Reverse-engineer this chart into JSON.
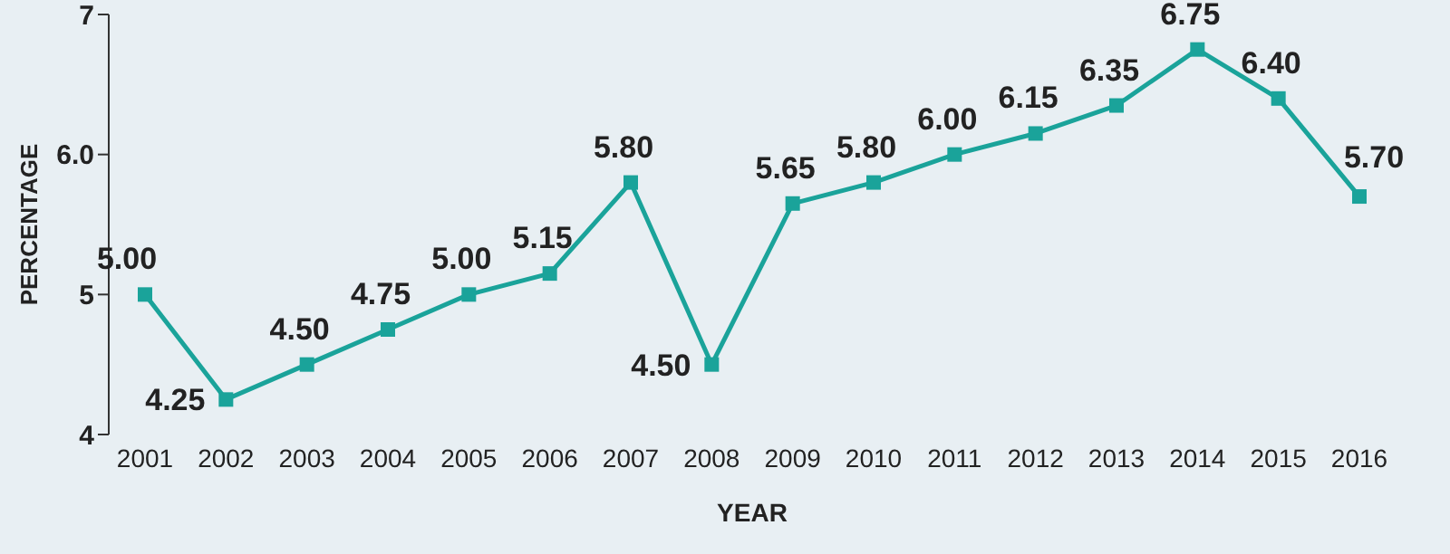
{
  "chart_data": {
    "type": "line",
    "xlabel": "YEAR",
    "ylabel": "PERCENTAGE",
    "categories": [
      "2001",
      "2002",
      "2003",
      "2004",
      "2005",
      "2006",
      "2007",
      "2008",
      "2009",
      "2010",
      "2011",
      "2012",
      "2013",
      "2014",
      "2015",
      "2016"
    ],
    "values": [
      5.0,
      4.25,
      4.5,
      4.75,
      5.0,
      5.15,
      5.8,
      4.5,
      5.65,
      5.8,
      6.0,
      6.15,
      6.35,
      6.75,
      6.4,
      5.7
    ],
    "value_labels": [
      "5.00",
      "4.25",
      "4.50",
      "4.75",
      "5.00",
      "5.15",
      "5.80",
      "4.50",
      "5.65",
      "5.80",
      "6.00",
      "6.15",
      "6.35",
      "6.75",
      "6.40",
      "5.70"
    ],
    "color": "#1aa39a",
    "marker": "square",
    "ylim": [
      4,
      7
    ],
    "yticks": [
      4,
      5,
      {
        "value": 6,
        "label": "6.0"
      },
      7
    ]
  }
}
